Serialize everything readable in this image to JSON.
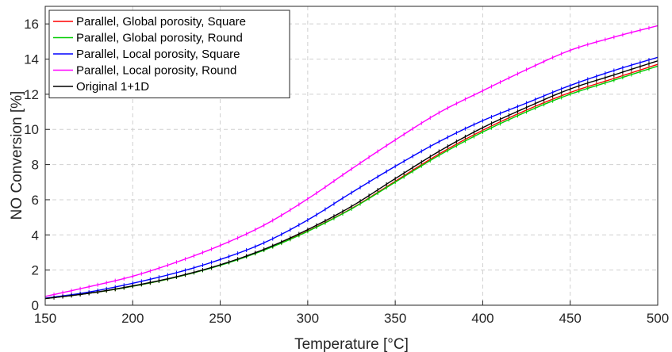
{
  "chart_data": {
    "type": "line",
    "title": "",
    "xlabel": "Temperature [°C]",
    "ylabel": "NO Conversion [%]",
    "xlim": [
      150,
      500
    ],
    "ylim": [
      0,
      17
    ],
    "xticks": [
      150,
      200,
      250,
      300,
      350,
      400,
      450,
      500
    ],
    "yticks": [
      0,
      2,
      4,
      6,
      8,
      10,
      12,
      14,
      16
    ],
    "grid": true,
    "legend_position": "top-left",
    "x": [
      150,
      175,
      200,
      225,
      250,
      275,
      300,
      325,
      350,
      375,
      400,
      425,
      450,
      475,
      500
    ],
    "series": [
      {
        "name": "Parallel, Global porosity, Square",
        "color": "#ff0000",
        "values": [
          0.38,
          0.68,
          1.08,
          1.6,
          2.28,
          3.15,
          4.22,
          5.5,
          7.05,
          8.6,
          9.95,
          11.1,
          12.1,
          12.9,
          13.7
        ]
      },
      {
        "name": "Parallel, Global porosity, Round",
        "color": "#00cc00",
        "values": [
          0.38,
          0.68,
          1.08,
          1.6,
          2.27,
          3.13,
          4.2,
          5.48,
          7.0,
          8.52,
          9.85,
          11.0,
          12.0,
          12.8,
          13.6
        ]
      },
      {
        "name": "Parallel, Local porosity, Square",
        "color": "#0000ff",
        "values": [
          0.4,
          0.75,
          1.25,
          1.85,
          2.6,
          3.55,
          4.85,
          6.4,
          7.9,
          9.3,
          10.5,
          11.5,
          12.5,
          13.35,
          14.1
        ]
      },
      {
        "name": "Parallel, Local porosity, Round",
        "color": "#ff00ff",
        "values": [
          0.5,
          1.05,
          1.65,
          2.45,
          3.4,
          4.55,
          6.05,
          7.75,
          9.4,
          10.95,
          12.2,
          13.4,
          14.5,
          15.25,
          15.9
        ]
      },
      {
        "name": "Original 1+1D",
        "color": "#000000",
        "values": [
          0.38,
          0.68,
          1.1,
          1.62,
          2.3,
          3.18,
          4.3,
          5.62,
          7.2,
          8.75,
          10.1,
          11.25,
          12.3,
          13.1,
          13.9
        ]
      }
    ]
  }
}
